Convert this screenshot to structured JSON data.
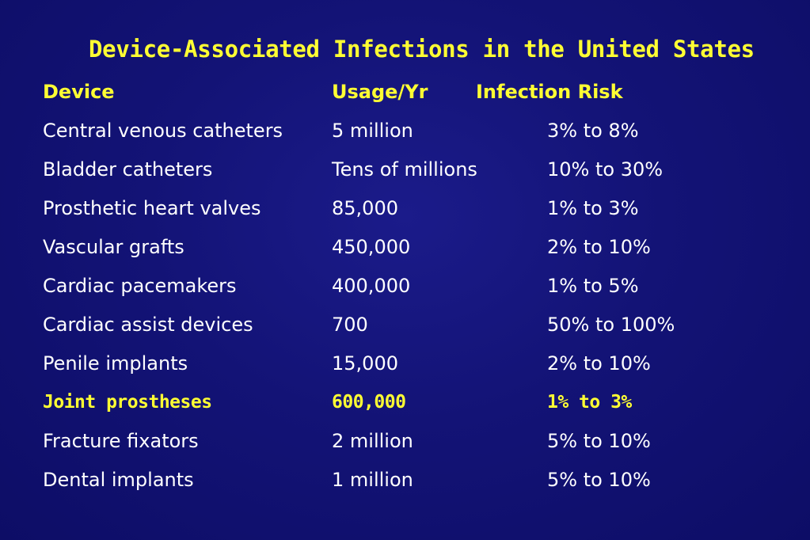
{
  "title": "Device-Associated Infections in the United States",
  "header": {
    "device": "Device",
    "usage": "Usage/Yr",
    "risk": "Infection Risk"
  },
  "rows": [
    {
      "device": "Central venous catheters",
      "usage": "5 million",
      "risk": "3% to 8%"
    },
    {
      "device": "Bladder catheters",
      "usage": "Tens of millions",
      "risk": "10% to 30%"
    },
    {
      "device": "Prosthetic heart valves",
      "usage": "85,000",
      "risk": "1% to 3%"
    },
    {
      "device": "Vascular grafts",
      "usage": "450,000",
      "risk": "2% to 10%"
    },
    {
      "device": "Cardiac pacemakers",
      "usage": "400,000",
      "risk": "1% to 5%"
    },
    {
      "device": "Cardiac assist devices",
      "usage": "700",
      "risk": "50% to 100%"
    },
    {
      "device": "Penile implants",
      "usage": "15,000",
      "risk": "2% to 10%"
    },
    {
      "device": "Joint prostheses",
      "usage": "600,000",
      "risk": "1% to 3%"
    },
    {
      "device": "Fracture fixators",
      "usage": "2 million",
      "risk": "5% to 10%"
    },
    {
      "device": "Dental implants",
      "usage": "1 million",
      "risk": "5% to 10%"
    }
  ],
  "colors": {
    "background": "#131376",
    "title": "#ffff33",
    "text": "#ffffff",
    "highlight": "#ffff33"
  }
}
